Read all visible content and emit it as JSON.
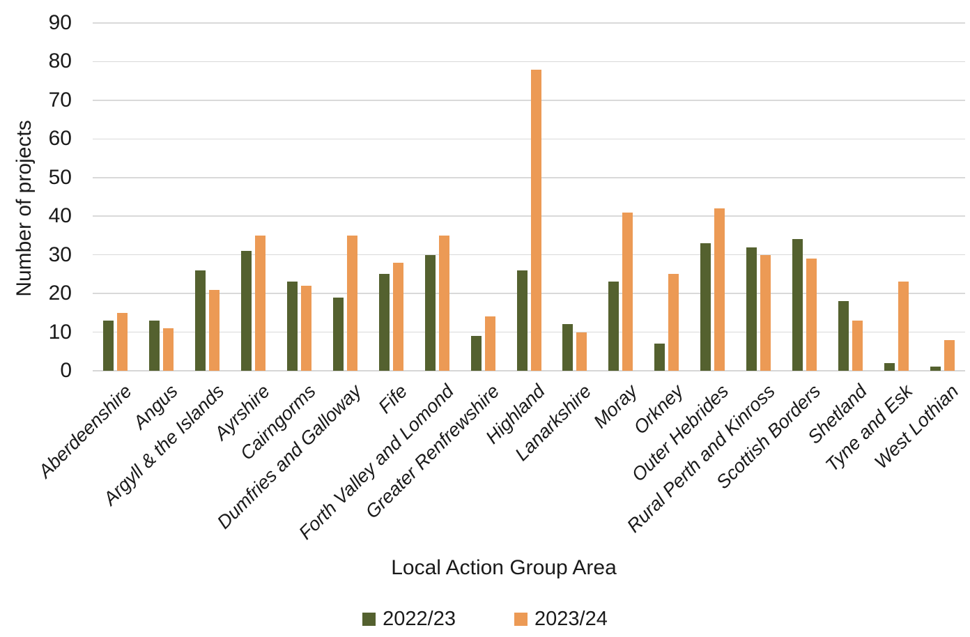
{
  "chart_data": {
    "type": "bar",
    "title": "",
    "xlabel": "Local Action Group Area",
    "ylabel": "Number of projects",
    "ylim": [
      0,
      90
    ],
    "ytick_step": 10,
    "yticks": [
      0,
      10,
      20,
      30,
      40,
      50,
      60,
      70,
      80,
      90
    ],
    "grid": true,
    "legend_position": "bottom",
    "categories": [
      "Aberdeenshire",
      "Angus",
      "Argyll & the Islands",
      "Ayrshire",
      "Cairngorms",
      "Dumfries and Galloway",
      "Fife",
      "Forth Valley and Lomond",
      "Greater Renfrewshire",
      "Highland",
      "Lanarkshire",
      "Moray",
      "Orkney",
      "Outer Hebrides",
      "Rural Perth and Kinross",
      "Scottish Borders",
      "Shetland",
      "Tyne and Esk",
      "West Lothian"
    ],
    "series": [
      {
        "name": "2022/23",
        "color": "#54612F",
        "values": [
          13,
          13,
          26,
          31,
          23,
          19,
          25,
          30,
          9,
          26,
          12,
          23,
          7,
          33,
          32,
          34,
          18,
          2,
          1
        ]
      },
      {
        "name": "2023/24",
        "color": "#EC9A55",
        "values": [
          15,
          11,
          21,
          35,
          22,
          35,
          28,
          35,
          14,
          78,
          10,
          41,
          25,
          42,
          30,
          29,
          13,
          23,
          8
        ]
      }
    ],
    "colors": {
      "gridline": "#d9d9d9",
      "text": "#1a1a1a",
      "background": "#ffffff"
    }
  }
}
